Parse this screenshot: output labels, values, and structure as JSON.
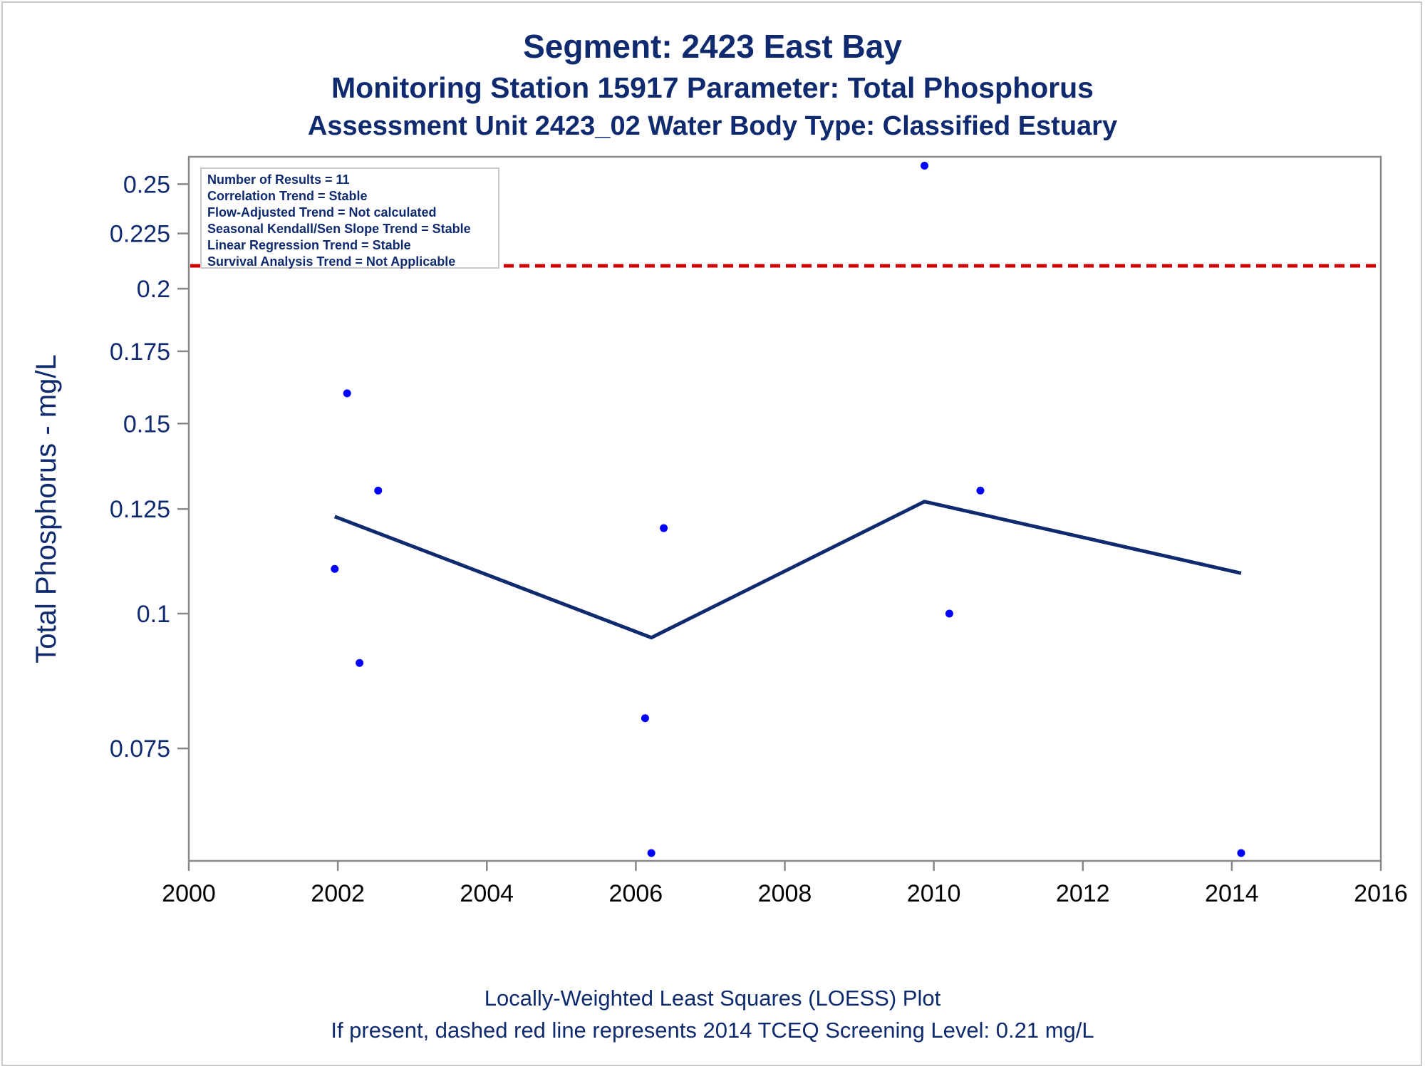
{
  "titles": {
    "line1": "Segment: 2423  East Bay",
    "line2": "Monitoring Station 15917 Parameter: Total Phosphorus",
    "line3": "Assessment Unit 2423_02   Water Body Type: Classified Estuary"
  },
  "footer": {
    "line1": "Locally-Weighted Least Squares (LOESS) Plot",
    "line2": "If present, dashed red line represents 2014 TCEQ Screening Level: 0.21 mg/L"
  },
  "stats_box": [
    "Number of Results = 11",
    "Correlation Trend = Stable",
    "Flow-Adjusted Trend = Not calculated",
    "Seasonal Kendall/Sen Slope Trend = Stable",
    "Linear Regression Trend = Stable",
    "Survival Analysis Trend = Not Applicable"
  ],
  "colors": {
    "text": "#0f2a6e",
    "points": "#0000ff",
    "loess": "#0f2a6e",
    "screening_line": "#cc0000",
    "axis": "#888888"
  },
  "chart_data": {
    "type": "scatter",
    "ylabel": "Total Phosphorus - mg/L",
    "xlabel": "",
    "yscale": "log",
    "xlim": [
      2000,
      2016
    ],
    "ylim": [
      0.059,
      0.265
    ],
    "x_ticks": [
      "2000",
      "2002",
      "2004",
      "2006",
      "2008",
      "2010",
      "2012",
      "2014",
      "2016"
    ],
    "y_ticks": [
      "0.075",
      "0.1",
      "0.125",
      "0.15",
      "0.175",
      "0.2",
      "0.225",
      "0.25"
    ],
    "points": [
      {
        "x": "2001-12",
        "y": 0.11
      },
      {
        "x": "2002-02",
        "y": 0.16
      },
      {
        "x": "2002-04",
        "y": 0.09
      },
      {
        "x": "2002-07",
        "y": 0.13
      },
      {
        "x": "2006-02",
        "y": 0.08
      },
      {
        "x": "2006-03",
        "y": 0.06
      },
      {
        "x": "2006-05",
        "y": 0.12
      },
      {
        "x": "2009-11",
        "y": 0.26
      },
      {
        "x": "2010-03",
        "y": 0.1
      },
      {
        "x": "2010-08",
        "y": 0.13
      },
      {
        "x": "2014-02",
        "y": 0.06
      }
    ],
    "loess": [
      {
        "x": "2001-12",
        "y": 0.123
      },
      {
        "x": "2006-03",
        "y": 0.095
      },
      {
        "x": "2009-11",
        "y": 0.127
      },
      {
        "x": "2014-02",
        "y": 0.109
      }
    ],
    "reference_line": {
      "y": 0.21,
      "style": "dashed",
      "color": "#cc0000"
    },
    "grid": false,
    "legend": "none"
  }
}
